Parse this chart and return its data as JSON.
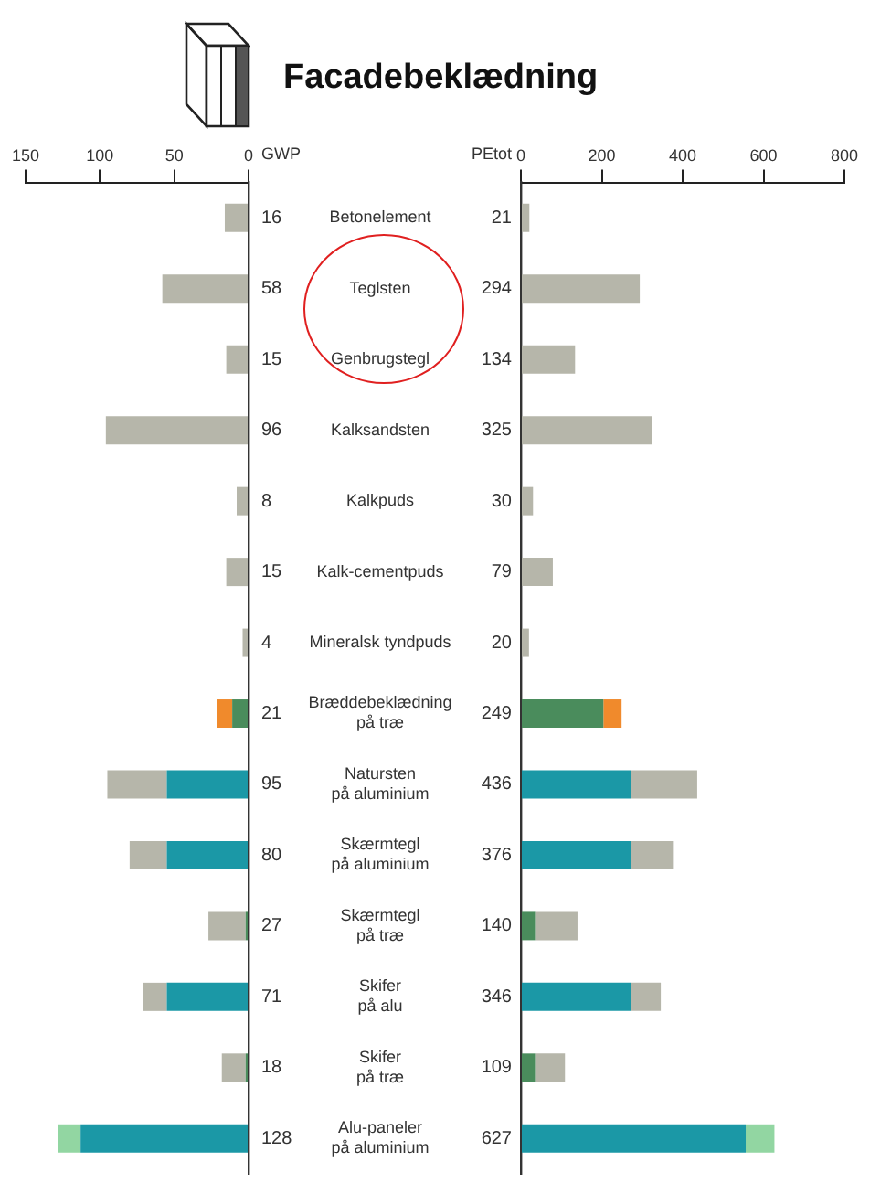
{
  "chart_data": [
    {
      "type": "bar",
      "xlabel": "GWP",
      "orientation": "horizontal",
      "stacked": true,
      "grid": false,
      "legend": false,
      "tick_labels": "x",
      "xlim": [
        150,
        0
      ],
      "xticks": [
        150,
        100,
        50,
        0
      ],
      "categories": [
        null,
        null,
        null,
        null,
        null,
        null,
        null,
        null,
        null,
        null,
        null,
        null,
        null,
        null
      ],
      "series": [
        {
          "color": "#4a8c5c",
          "values": [
            null,
            null,
            null,
            null,
            null,
            null,
            null,
            11,
            null,
            null,
            2,
            null,
            2,
            null
          ]
        },
        {
          "color": "#1b98a6",
          "values": [
            null,
            null,
            null,
            null,
            null,
            null,
            null,
            null,
            55,
            55,
            null,
            55,
            null,
            113
          ]
        },
        {
          "color": "#b6b6aa",
          "values": [
            16,
            58,
            15,
            96,
            8,
            15,
            4,
            null,
            40,
            25,
            25,
            16,
            16,
            null
          ]
        },
        {
          "color": "#f08a2c",
          "values": [
            null,
            null,
            null,
            null,
            null,
            null,
            null,
            10,
            null,
            null,
            null,
            null,
            null,
            null
          ]
        },
        {
          "color": "#92d6a2",
          "values": [
            null,
            null,
            null,
            null,
            null,
            null,
            null,
            null,
            null,
            null,
            null,
            null,
            null,
            15
          ]
        }
      ],
      "totals": [
        "16",
        "58",
        "15",
        "96",
        "8",
        "15",
        "4",
        "21",
        "95",
        "80",
        "27",
        "71",
        "18",
        "128"
      ]
    },
    {
      "type": "bar",
      "title": "Facadebeklædning",
      "xlabel": "PEtot",
      "orientation": "horizontal",
      "stacked": true,
      "grid": false,
      "legend": false,
      "xlim": [
        0,
        800
      ],
      "xticks": [
        0,
        200,
        400,
        600,
        800
      ],
      "categories": [
        "Betonelement",
        "Teglsten",
        "Genbrugstegl",
        "Kalksandsten",
        "Kalkpuds",
        "Kalk-cementpuds",
        "Mineralsk tyndpuds",
        "Bræddebeklædning\npå træ",
        "Natursten\npå aluminium",
        "Skærmtegl\npå aluminium",
        "Skærmtegl\npå træ",
        "Skifer\npå alu",
        "Skifer\npå træ",
        "Alu-paneler\npå aluminium"
      ],
      "series": [
        {
          "color": "#4a8c5c",
          "values": [
            null,
            null,
            null,
            null,
            null,
            null,
            null,
            204,
            null,
            null,
            35,
            null,
            35,
            null
          ]
        },
        {
          "color": "#1b98a6",
          "values": [
            null,
            null,
            null,
            null,
            null,
            null,
            null,
            null,
            272,
            272,
            null,
            272,
            null,
            556
          ]
        },
        {
          "color": "#b6b6aa",
          "values": [
            21,
            294,
            134,
            325,
            30,
            79,
            20,
            null,
            164,
            104,
            105,
            74,
            74,
            null
          ]
        },
        {
          "color": "#f08a2c",
          "values": [
            null,
            null,
            null,
            null,
            null,
            null,
            null,
            45,
            null,
            null,
            null,
            null,
            null,
            null
          ]
        },
        {
          "color": "#92d6a2",
          "values": [
            null,
            null,
            null,
            null,
            null,
            null,
            null,
            null,
            null,
            null,
            null,
            null,
            null,
            71
          ]
        }
      ],
      "totals": [
        "21",
        "294",
        "134",
        "325",
        "30",
        "79",
        "20",
        "249",
        "436",
        "376",
        "140",
        "346",
        "109",
        "627"
      ]
    }
  ]
}
